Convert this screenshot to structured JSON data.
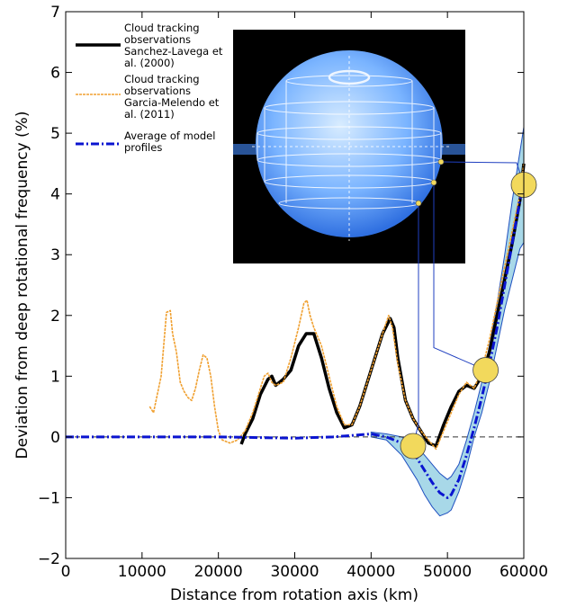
{
  "chart_data": {
    "type": "line",
    "xlabel": "Distance from rotation axis (km)",
    "ylabel": "Deviation from deep rotational frequency (%)",
    "xlim": [
      0,
      60000
    ],
    "ylim": [
      -2,
      7
    ],
    "xticks": [
      0,
      10000,
      20000,
      30000,
      40000,
      50000,
      60000
    ],
    "yticks": [
      {
        "value": -2,
        "label": "−2"
      },
      {
        "value": -1,
        "label": "−1"
      },
      0,
      1,
      2,
      3,
      4,
      5,
      6,
      7
    ],
    "reference_line": 0,
    "series": [
      {
        "name": "Cloud tracking observations Sanchez-Lavega et al. (2000)",
        "color": "#000000",
        "x": [
          23000,
          23500,
          24500,
          25500,
          26500,
          27000,
          27500,
          28500,
          29500,
          30500,
          31500,
          32500,
          33500,
          34500,
          35500,
          36500,
          37500,
          38500,
          39500,
          40500,
          41500,
          42500,
          43000,
          43500,
          44500,
          45500,
          46500,
          47500,
          48500,
          49500,
          50500,
          51500,
          52500,
          53500,
          54500,
          55500,
          56500,
          57500,
          58500,
          59500,
          60000
        ],
        "values": [
          -0.12,
          0.05,
          0.3,
          0.7,
          0.95,
          1.0,
          0.85,
          0.95,
          1.1,
          1.5,
          1.7,
          1.7,
          1.3,
          0.8,
          0.4,
          0.15,
          0.2,
          0.5,
          0.9,
          1.3,
          1.7,
          1.95,
          1.8,
          1.3,
          0.6,
          0.3,
          0.1,
          -0.1,
          -0.15,
          0.2,
          0.5,
          0.75,
          0.85,
          0.8,
          1.0,
          1.4,
          2.0,
          2.6,
          3.2,
          3.9,
          4.5
        ]
      },
      {
        "name": "Cloud tracking observations Garcia-Melendo et al. (2011)",
        "color": "#f0a030",
        "x": [
          11000,
          11500,
          12500,
          13200,
          13700,
          14000,
          14500,
          15000,
          15500,
          16000,
          16500,
          17000,
          17500,
          18000,
          18500,
          19000,
          19500,
          20000,
          20500,
          21500,
          22500,
          23500,
          24500,
          25500,
          26000,
          26500,
          27000,
          27500,
          28500,
          29500,
          30500,
          31200,
          31600,
          32000,
          32500,
          33500,
          34500,
          35500,
          36500,
          37500,
          38500,
          39500,
          40500,
          41500,
          42300,
          42800,
          43500,
          44500,
          45500,
          46500,
          47500,
          48500,
          49500,
          50500,
          51500,
          52500,
          53500,
          54500,
          55500,
          56500,
          57500,
          58500,
          59500,
          60000
        ],
        "values": [
          0.5,
          0.4,
          1.0,
          2.05,
          2.08,
          1.7,
          1.4,
          0.9,
          0.75,
          0.65,
          0.6,
          0.8,
          1.1,
          1.35,
          1.3,
          1.0,
          0.5,
          0.1,
          -0.05,
          -0.1,
          -0.05,
          0.1,
          0.4,
          0.8,
          1.0,
          1.05,
          0.9,
          0.85,
          0.9,
          1.3,
          1.8,
          2.2,
          2.25,
          2.0,
          1.8,
          1.5,
          1.0,
          0.5,
          0.2,
          0.2,
          0.5,
          0.9,
          1.3,
          1.7,
          2.0,
          1.8,
          1.2,
          0.6,
          0.3,
          0.1,
          -0.05,
          -0.2,
          0.1,
          0.4,
          0.7,
          0.9,
          0.8,
          1.1,
          1.6,
          2.2,
          2.8,
          3.4,
          4.0,
          4.5
        ]
      },
      {
        "name": "Average of model profiles",
        "color": "#0a14d0",
        "x": [
          0,
          10000,
          20000,
          30000,
          35000,
          38000,
          40000,
          42000,
          44000,
          46000,
          47000,
          48000,
          49000,
          50000,
          50500,
          51500,
          52500,
          53500,
          54500,
          55500,
          56500,
          57500,
          58500,
          59500,
          60000
        ],
        "values": [
          0,
          0,
          0,
          -0.02,
          0,
          0.03,
          0.05,
          0,
          -0.1,
          -0.35,
          -0.55,
          -0.75,
          -0.92,
          -1.0,
          -0.95,
          -0.7,
          -0.3,
          0.15,
          0.65,
          1.2,
          1.8,
          2.5,
          3.2,
          3.9,
          4.3
        ]
      }
    ],
    "band": {
      "color": "#a8d8e8",
      "x": [
        40000,
        42000,
        44000,
        46000,
        47000,
        48000,
        49000,
        50000,
        50500,
        51500,
        52500,
        53500,
        54500,
        55500,
        56500,
        57500,
        58500,
        59500,
        60000
      ],
      "lower": [
        0.0,
        -0.05,
        -0.3,
        -0.7,
        -0.95,
        -1.15,
        -1.3,
        -1.25,
        -1.2,
        -0.9,
        -0.5,
        0.0,
        0.4,
        0.9,
        1.5,
        2.1,
        2.6,
        3.1,
        3.2
      ],
      "upper": [
        0.08,
        0.05,
        0.0,
        -0.15,
        -0.3,
        -0.45,
        -0.6,
        -0.7,
        -0.65,
        -0.45,
        -0.05,
        0.4,
        0.9,
        1.5,
        2.2,
        3.0,
        3.9,
        4.7,
        5.1
      ]
    },
    "markers": {
      "color": "#f2d95c",
      "x": [
        45500,
        55000,
        60000
      ],
      "values": [
        -0.15,
        1.1,
        4.15
      ]
    }
  }
}
